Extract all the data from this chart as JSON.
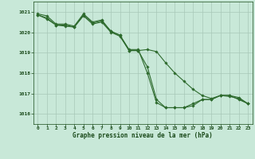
{
  "hours": [
    0,
    1,
    2,
    3,
    4,
    5,
    6,
    7,
    8,
    9,
    10,
    11,
    12,
    13,
    14,
    15,
    16,
    17,
    18,
    19,
    20,
    21,
    22,
    23
  ],
  "series1": [
    1020.9,
    1020.8,
    1020.4,
    1020.4,
    1020.3,
    1020.9,
    1020.5,
    1020.6,
    1020.05,
    1019.85,
    1019.15,
    1019.15,
    1018.0,
    1016.55,
    1016.3,
    1016.3,
    1016.3,
    1016.4,
    1016.7,
    1016.7,
    1016.9,
    1016.9,
    1016.7,
    1016.5
  ],
  "series2": [
    1020.85,
    1020.7,
    1020.35,
    1020.35,
    1020.25,
    1020.8,
    1020.4,
    1020.5,
    1020.0,
    1019.8,
    1019.1,
    1019.1,
    1019.15,
    1019.05,
    1018.5,
    1018.0,
    1017.6,
    1017.2,
    1016.9,
    1016.75,
    1016.9,
    1016.85,
    1016.75,
    1016.5
  ],
  "series3": [
    1020.85,
    1020.65,
    1020.35,
    1020.3,
    1020.25,
    1020.85,
    1020.45,
    1020.55,
    1020.05,
    1019.85,
    1019.1,
    1019.1,
    1018.3,
    1016.7,
    1016.3,
    1016.3,
    1016.3,
    1016.5,
    1016.7,
    1016.7,
    1016.9,
    1016.9,
    1016.8,
    1016.5
  ],
  "ylim": [
    1015.5,
    1021.5
  ],
  "yticks": [
    1016,
    1017,
    1018,
    1019,
    1020,
    1021
  ],
  "xlim": [
    -0.5,
    23.5
  ],
  "xticks": [
    0,
    1,
    2,
    3,
    4,
    5,
    6,
    7,
    8,
    9,
    10,
    11,
    12,
    13,
    14,
    15,
    16,
    17,
    18,
    19,
    20,
    21,
    22,
    23
  ],
  "line_color": "#2d6a2d",
  "bg_color": "#c8e8d8",
  "grid_color": "#a8c8b8",
  "xlabel": "Graphe pression niveau de la mer (hPa)",
  "xlabel_color": "#1a4a1a",
  "tick_color": "#1a4a1a",
  "marker": "D",
  "marker_size": 1.8,
  "linewidth": 0.8,
  "tick_fontsize": 4.5,
  "xlabel_fontsize": 5.5
}
